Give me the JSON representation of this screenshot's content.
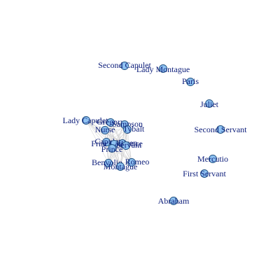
{
  "network": {
    "nodes": [
      {
        "id": "second-capulet",
        "label": "Second Capulet"
      },
      {
        "id": "lady-montague",
        "label": "Lady Montague"
      },
      {
        "id": "paris",
        "label": "Paris"
      },
      {
        "id": "juliet",
        "label": "Juliet"
      },
      {
        "id": "second-servant",
        "label": "Second Servant"
      },
      {
        "id": "mercutio",
        "label": "Mercutio"
      },
      {
        "id": "first-servant",
        "label": "First Servant"
      },
      {
        "id": "abraham",
        "label": "Abraham"
      },
      {
        "id": "lady-capulet",
        "label": "Lady Capulet"
      },
      {
        "id": "gregory",
        "label": "Gregory"
      },
      {
        "id": "sampson",
        "label": "Sampson"
      },
      {
        "id": "nurse",
        "label": "Nurse"
      },
      {
        "id": "tybalt",
        "label": "Tybalt"
      },
      {
        "id": "capulet",
        "label": "Capulet"
      },
      {
        "id": "citizen",
        "label": "Citizen"
      },
      {
        "id": "friar-lawrence",
        "label": "Friar Lawrence"
      },
      {
        "id": "servant",
        "label": "Servant"
      },
      {
        "id": "prince",
        "label": "Prince"
      },
      {
        "id": "benvolio",
        "label": "Benvolio"
      },
      {
        "id": "romeo",
        "label": "Romeo"
      },
      {
        "id": "montague",
        "label": "Montague"
      }
    ]
  }
}
